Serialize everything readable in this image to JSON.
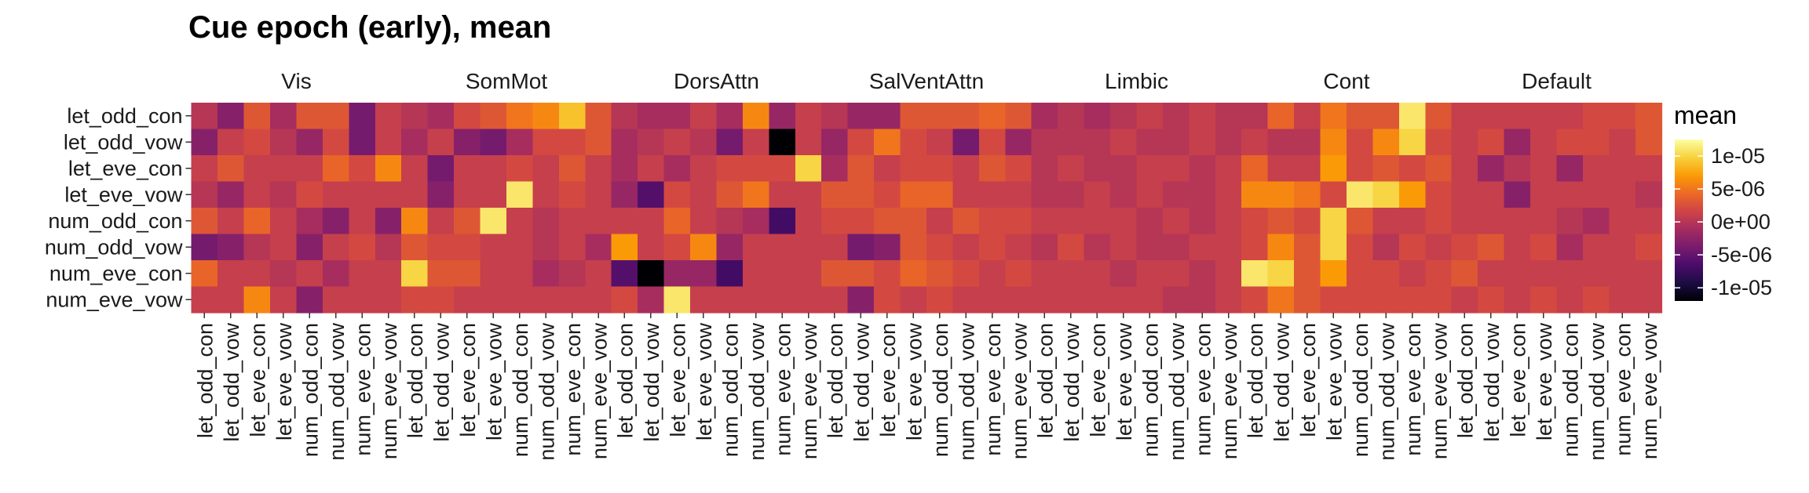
{
  "chart_data": {
    "type": "heatmap",
    "title": "Cue epoch (early), mean",
    "legend": {
      "title": "mean",
      "position": "right",
      "ticks": [
        {
          "value": 1e-05,
          "label": "1e-05"
        },
        {
          "value": 5e-06,
          "label": "5e-06"
        },
        {
          "value": 0,
          "label": "0e+00"
        },
        {
          "value": -5e-06,
          "label": "-5e-06"
        },
        {
          "value": -1e-05,
          "label": "-1e-05"
        }
      ],
      "colors": [
        "#000004",
        "#1c0c42",
        "#4b0c6b",
        "#781c6d",
        "#a52c60",
        "#cf4446",
        "#ed6925",
        "#fb9b06",
        "#f7d13d",
        "#fcffa4"
      ],
      "limits": [
        -1.2e-05,
        1.25e-05
      ]
    },
    "categories": [
      "let_odd_con",
      "let_odd_vow",
      "let_eve_con",
      "let_eve_vow",
      "num_odd_con",
      "num_odd_vow",
      "num_eve_con",
      "num_eve_vow"
    ],
    "panels": [
      {
        "name": "Vis",
        "values": [
          [
            0,
            -3e-06,
            3e-06,
            -1e-06,
            3e-06,
            3e-06,
            -4e-06,
            1e-06
          ],
          [
            -3e-06,
            1e-06,
            2e-06,
            0,
            -2e-06,
            2e-06,
            -4e-06,
            1e-06
          ],
          [
            1e-06,
            3e-06,
            1e-06,
            1e-06,
            1e-06,
            4e-06,
            2e-06,
            6e-06
          ],
          [
            0,
            -2e-06,
            1e-06,
            0,
            2e-06,
            1e-06,
            1e-06,
            1e-06
          ],
          [
            3e-06,
            1e-06,
            4e-06,
            1e-06,
            -1e-06,
            -3e-06,
            1e-06,
            -3e-06
          ],
          [
            -4e-06,
            -3e-06,
            0,
            1e-06,
            -3e-06,
            1e-06,
            2e-06,
            0
          ],
          [
            4e-06,
            1e-06,
            1e-06,
            0,
            1e-06,
            -1e-06,
            1e-06,
            1e-06
          ],
          [
            1e-06,
            1e-06,
            6e-06,
            1e-06,
            -3e-06,
            1e-06,
            1e-06,
            1e-06
          ]
        ]
      },
      {
        "name": "SomMot",
        "values": [
          [
            0,
            -1e-06,
            2e-06,
            3e-06,
            5e-06,
            6e-06,
            9e-06,
            3e-06
          ],
          [
            -1e-06,
            1e-06,
            -3e-06,
            -4e-06,
            -1e-06,
            2e-06,
            2e-06,
            3e-06
          ],
          [
            1e-06,
            -4e-06,
            1e-06,
            1e-06,
            2e-06,
            1e-06,
            3e-06,
            1e-06
          ],
          [
            1e-06,
            -3e-06,
            1e-06,
            1e-06,
            1.1e-05,
            1e-06,
            2e-06,
            1e-06
          ],
          [
            6e-06,
            1e-06,
            3e-06,
            1.1e-05,
            1e-06,
            0,
            1e-06,
            1e-06
          ],
          [
            3e-06,
            2e-06,
            2e-06,
            1e-06,
            1e-06,
            0,
            1e-06,
            -1e-06
          ],
          [
            1e-05,
            3e-06,
            3e-06,
            1e-06,
            1e-06,
            -1e-06,
            0,
            1e-06
          ],
          [
            2e-06,
            2e-06,
            1e-06,
            1e-06,
            1e-06,
            1e-06,
            1e-06,
            1e-06
          ]
        ]
      },
      {
        "name": "DorsAttn",
        "values": [
          [
            0,
            -1e-06,
            -1e-06,
            1e-06,
            -1e-06,
            6e-06,
            -2e-06,
            1e-06
          ],
          [
            -1e-06,
            0,
            1e-06,
            0,
            -4e-06,
            1e-06,
            -1.2e-05,
            1e-06
          ],
          [
            -1e-06,
            1e-06,
            -1e-06,
            1e-06,
            2e-06,
            2e-06,
            2e-06,
            1e-05
          ],
          [
            -2e-06,
            -6e-06,
            2e-06,
            1e-06,
            3e-06,
            5e-06,
            1e-06,
            1e-06
          ],
          [
            1e-06,
            1e-06,
            4e-06,
            1e-06,
            0,
            -1e-06,
            -7e-06,
            1e-06
          ],
          [
            7e-06,
            1e-06,
            2e-06,
            6e-06,
            -2e-06,
            1e-06,
            1e-06,
            1e-06
          ],
          [
            -6e-06,
            -1.2e-05,
            -2e-06,
            -2e-06,
            -7e-06,
            1e-06,
            1e-06,
            1e-06
          ],
          [
            2e-06,
            -1e-06,
            1.1e-05,
            1e-06,
            1e-06,
            1e-06,
            1e-06,
            1e-06
          ]
        ]
      },
      {
        "name": "SalVentAttn",
        "values": [
          [
            0,
            -2e-06,
            -2e-06,
            3e-06,
            3e-06,
            3e-06,
            4e-06,
            3e-06
          ],
          [
            -2e-06,
            2e-06,
            5e-06,
            2e-06,
            1e-06,
            -4e-06,
            2e-06,
            -2e-06
          ],
          [
            -1e-06,
            3e-06,
            1e-06,
            2e-06,
            2e-06,
            1e-06,
            3e-06,
            2e-06
          ],
          [
            3e-06,
            3e-06,
            2e-06,
            4e-06,
            4e-06,
            1e-06,
            1e-06,
            1e-06
          ],
          [
            2e-06,
            2e-06,
            3e-06,
            3e-06,
            1e-06,
            3e-06,
            2e-06,
            2e-06
          ],
          [
            1e-06,
            -4e-06,
            -3e-06,
            3e-06,
            2e-06,
            1e-06,
            2e-06,
            1e-06
          ],
          [
            3e-06,
            3e-06,
            2e-06,
            4e-06,
            3e-06,
            2e-06,
            1e-06,
            2e-06
          ],
          [
            1e-06,
            -3e-06,
            2e-06,
            1e-06,
            2e-06,
            1e-06,
            1e-06,
            1e-06
          ]
        ]
      },
      {
        "name": "Limbic",
        "values": [
          [
            -1e-06,
            0,
            -1e-06,
            0,
            1e-06,
            0,
            1e-06,
            0
          ],
          [
            0,
            0,
            0,
            1e-06,
            0,
            0,
            1e-06,
            0
          ],
          [
            0,
            1e-06,
            0,
            0,
            1e-06,
            1e-06,
            0,
            1e-06
          ],
          [
            0,
            0,
            1e-06,
            0,
            1e-06,
            0,
            0,
            1e-06
          ],
          [
            1e-06,
            1e-06,
            1e-06,
            1e-06,
            0,
            1e-06,
            0,
            1e-06
          ],
          [
            0,
            2e-06,
            0,
            1e-06,
            0,
            0,
            1e-06,
            1e-06
          ],
          [
            1e-06,
            1e-06,
            1e-06,
            0,
            1e-06,
            1e-06,
            0,
            1e-06
          ],
          [
            1e-06,
            1e-06,
            1e-06,
            1e-06,
            1e-06,
            0,
            0,
            1e-06
          ]
        ]
      },
      {
        "name": "Cont",
        "values": [
          [
            0,
            4e-06,
            1e-06,
            5e-06,
            3e-06,
            3e-06,
            1.1e-05,
            3e-06
          ],
          [
            1e-06,
            0,
            0,
            6e-06,
            2e-06,
            6e-06,
            1e-05,
            2e-06
          ],
          [
            4e-06,
            1e-06,
            1e-06,
            7e-06,
            2e-06,
            3e-06,
            2e-06,
            3e-06
          ],
          [
            6e-06,
            6e-06,
            5e-06,
            2e-06,
            1.1e-05,
            1e-05,
            7e-06,
            2e-06
          ],
          [
            2e-06,
            3e-06,
            2e-06,
            1e-05,
            3e-06,
            1e-06,
            1e-06,
            2e-06
          ],
          [
            2e-06,
            6e-06,
            3e-06,
            1e-05,
            2e-06,
            0,
            2e-06,
            1e-06
          ],
          [
            1.1e-05,
            1e-05,
            3e-06,
            7e-06,
            2e-06,
            2e-06,
            1e-06,
            2e-06
          ],
          [
            2e-06,
            5e-06,
            3e-06,
            2e-06,
            2e-06,
            2e-06,
            2e-06,
            2e-06
          ]
        ]
      },
      {
        "name": "Default",
        "values": [
          [
            1e-06,
            1e-06,
            1e-06,
            1e-06,
            1e-06,
            2e-06,
            2e-06,
            3e-06
          ],
          [
            1e-06,
            2e-06,
            -2e-06,
            1e-06,
            2e-06,
            2e-06,
            1e-06,
            3e-06
          ],
          [
            1e-06,
            -2e-06,
            0,
            1e-06,
            -2e-06,
            1e-06,
            1e-06,
            1e-06
          ],
          [
            1e-06,
            1e-06,
            -3e-06,
            1e-06,
            1e-06,
            1e-06,
            1e-06,
            0
          ],
          [
            1e-06,
            1e-06,
            1e-06,
            1e-06,
            0,
            -1e-06,
            1e-06,
            1e-06
          ],
          [
            2e-06,
            3e-06,
            1e-06,
            2e-06,
            -1e-06,
            1e-06,
            1e-06,
            2e-06
          ],
          [
            3e-06,
            1e-06,
            1e-06,
            1e-06,
            1e-06,
            1e-06,
            1e-06,
            1e-06
          ],
          [
            1e-06,
            2e-06,
            1e-06,
            2e-06,
            1e-06,
            2e-06,
            1e-06,
            1e-06
          ]
        ]
      }
    ]
  }
}
